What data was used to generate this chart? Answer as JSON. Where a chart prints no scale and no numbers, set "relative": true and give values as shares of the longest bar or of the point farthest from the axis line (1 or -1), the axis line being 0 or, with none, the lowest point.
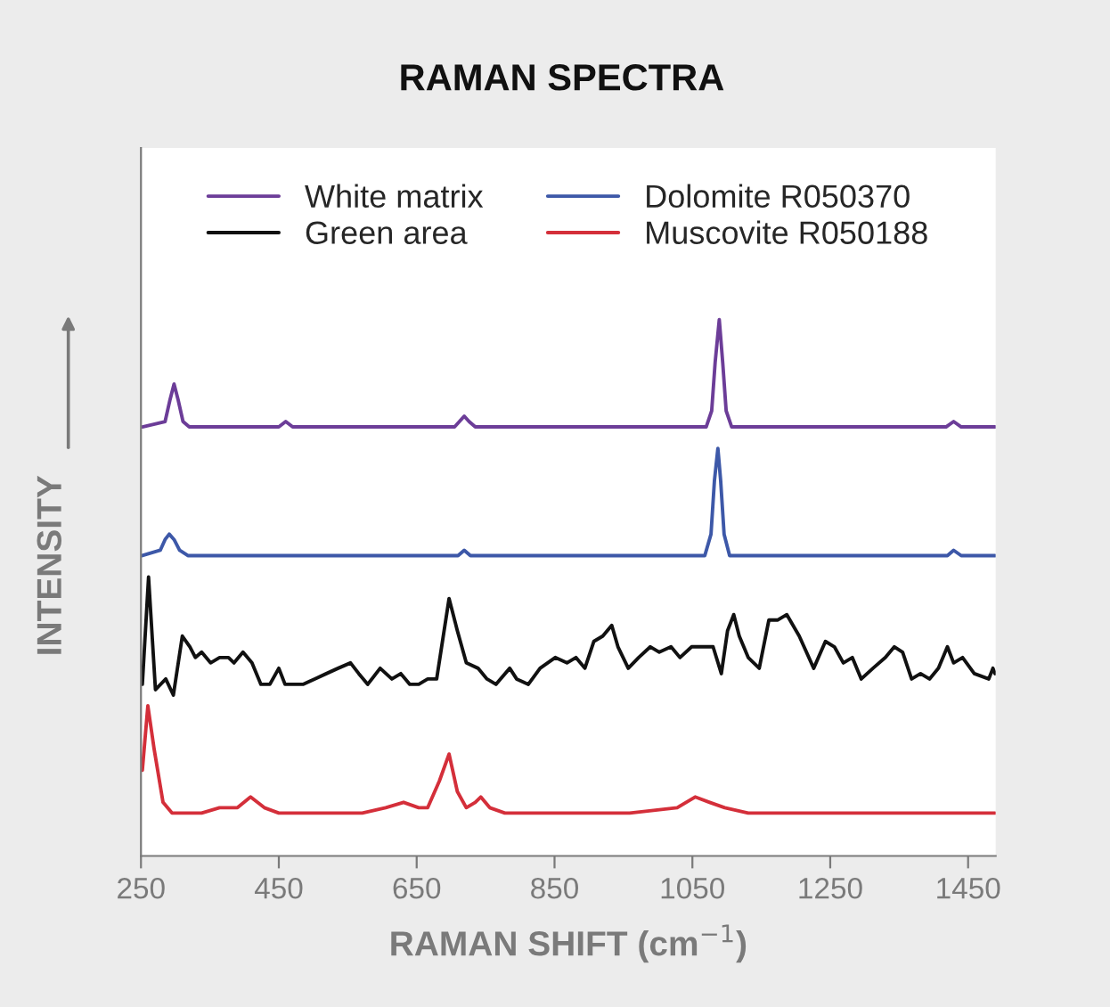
{
  "chart_data": {
    "type": "line",
    "title": "RAMAN SPECTRA",
    "xlabel": "RAMAN SHIFT (cm$^{−1}$)",
    "ylabel": "INTENSITY",
    "relative": true,
    "xlim": [
      250,
      1490
    ],
    "xticks": [
      250,
      450,
      650,
      850,
      1050,
      1250,
      1450
    ],
    "grid": false,
    "legend": "top",
    "line_style": "solid",
    "marker": "none",
    "series": [
      {
        "name": "White matrix",
        "color": "#6c3d98",
        "x": [
          252,
          285,
          292,
          298,
          304,
          311,
          320,
          450,
          460,
          470,
          705,
          712,
          719,
          726,
          735,
          1070,
          1078,
          1083,
          1089,
          1094,
          1099,
          1107,
          1418,
          1429,
          1440,
          1489
        ],
        "values": [
          0.8,
          0.81,
          0.85,
          0.88,
          0.85,
          0.81,
          0.8,
          0.8,
          0.81,
          0.8,
          0.8,
          0.81,
          0.82,
          0.81,
          0.8,
          0.8,
          0.83,
          0.92,
          1.0,
          0.92,
          0.83,
          0.8,
          0.8,
          0.81,
          0.8,
          0.8
        ]
      },
      {
        "name": "Green area",
        "color": "#111111",
        "x": [
          252,
          261,
          271,
          286,
          297,
          310,
          321,
          329,
          338,
          351,
          364,
          377,
          385,
          398,
          411,
          424,
          437,
          450,
          459,
          472,
          485,
          502,
          519,
          536,
          554,
          566,
          579,
          597,
          614,
          627,
          640,
          653,
          666,
          679,
          697,
          709,
          722,
          739,
          752,
          765,
          785,
          795,
          812,
          829,
          851,
          868,
          881,
          894,
          907,
          920,
          933,
          942,
          957,
          972,
          989,
          1002,
          1019,
          1032,
          1049,
          1067,
          1080,
          1092,
          1101,
          1110,
          1118,
          1131,
          1147,
          1161,
          1174,
          1187,
          1205,
          1226,
          1243,
          1256,
          1269,
          1282,
          1295,
          1312,
          1330,
          1343,
          1355,
          1368,
          1381,
          1394,
          1407,
          1420,
          1429,
          1442,
          1459,
          1480,
          1486,
          1489
        ],
        "values": [
          0.32,
          0.52,
          0.31,
          0.33,
          0.3,
          0.41,
          0.39,
          0.37,
          0.38,
          0.36,
          0.37,
          0.37,
          0.36,
          0.38,
          0.36,
          0.32,
          0.32,
          0.35,
          0.32,
          0.32,
          0.32,
          0.33,
          0.34,
          0.35,
          0.36,
          0.34,
          0.32,
          0.35,
          0.33,
          0.34,
          0.32,
          0.32,
          0.33,
          0.33,
          0.48,
          0.42,
          0.36,
          0.35,
          0.33,
          0.32,
          0.35,
          0.33,
          0.32,
          0.35,
          0.37,
          0.36,
          0.37,
          0.35,
          0.4,
          0.41,
          0.43,
          0.39,
          0.35,
          0.37,
          0.39,
          0.38,
          0.39,
          0.37,
          0.39,
          0.39,
          0.39,
          0.34,
          0.42,
          0.45,
          0.41,
          0.37,
          0.35,
          0.44,
          0.44,
          0.45,
          0.41,
          0.35,
          0.4,
          0.39,
          0.36,
          0.37,
          0.33,
          0.35,
          0.37,
          0.39,
          0.38,
          0.33,
          0.34,
          0.33,
          0.35,
          0.39,
          0.36,
          0.37,
          0.34,
          0.33,
          0.35,
          0.34
        ]
      },
      {
        "name": "Dolomite R050370",
        "color": "#3d58a8",
        "x": [
          252,
          278,
          285,
          291,
          298,
          306,
          318,
          710,
          719,
          728,
          1068,
          1077,
          1082,
          1087,
          1091,
          1096,
          1104,
          1420,
          1429,
          1440,
          1489
        ],
        "values": [
          0.56,
          0.57,
          0.59,
          0.6,
          0.59,
          0.57,
          0.56,
          0.56,
          0.57,
          0.56,
          0.56,
          0.6,
          0.7,
          0.76,
          0.7,
          0.6,
          0.56,
          0.56,
          0.57,
          0.56,
          0.56
        ]
      },
      {
        "name": "Muscovite R050188",
        "color": "#d42f3a",
        "x": [
          252,
          260,
          269,
          282,
          295,
          312,
          338,
          364,
          390,
          409,
          429,
          450,
          485,
          528,
          571,
          605,
          631,
          653,
          666,
          683,
          697,
          709,
          722,
          735,
          743,
          756,
          778,
          829,
          907,
          959,
          1028,
          1054,
          1075,
          1097,
          1131,
          1174,
          1347,
          1489
        ],
        "values": [
          0.16,
          0.28,
          0.2,
          0.1,
          0.08,
          0.08,
          0.08,
          0.09,
          0.09,
          0.11,
          0.09,
          0.08,
          0.08,
          0.08,
          0.08,
          0.09,
          0.1,
          0.09,
          0.09,
          0.14,
          0.19,
          0.12,
          0.09,
          0.1,
          0.11,
          0.09,
          0.08,
          0.08,
          0.08,
          0.08,
          0.09,
          0.11,
          0.1,
          0.09,
          0.08,
          0.08,
          0.08,
          0.08
        ]
      }
    ]
  }
}
